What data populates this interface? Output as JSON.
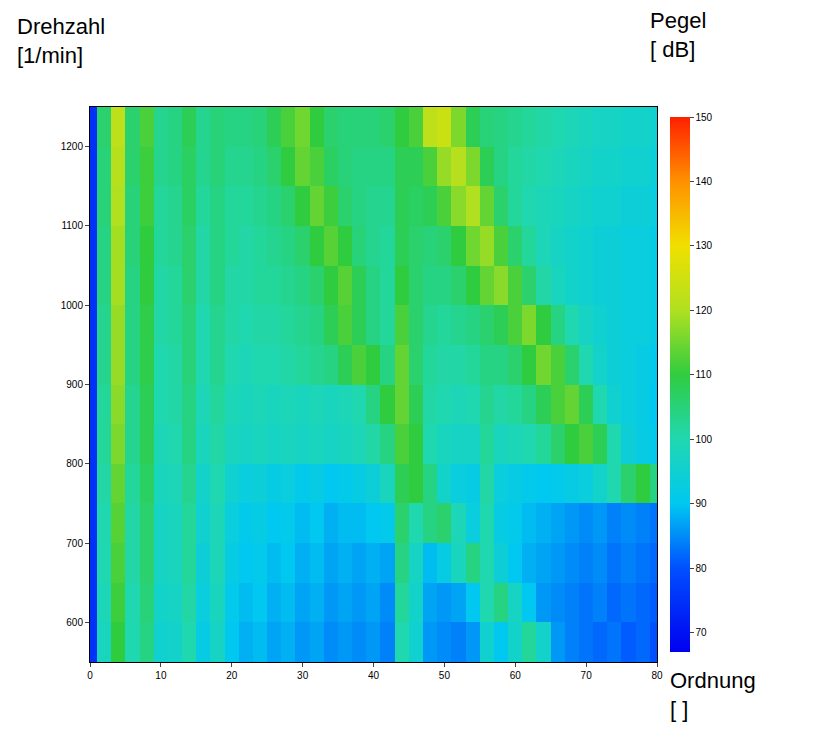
{
  "chart_data": {
    "type": "heatmap",
    "x_label": "Ordnung\n[ ]",
    "y_label": "Drehzahl\n[1/min]",
    "colorbar_label": "Pegel\n[ dB]",
    "x": [
      0,
      2,
      4,
      6,
      8,
      10,
      12,
      14,
      16,
      18,
      20,
      22,
      24,
      26,
      28,
      30,
      32,
      34,
      36,
      38,
      40,
      42,
      44,
      46,
      48,
      50,
      52,
      54,
      56,
      58,
      60,
      62,
      64,
      66,
      68,
      70,
      72,
      74,
      76,
      78,
      80
    ],
    "y": [
      575,
      625,
      675,
      725,
      775,
      825,
      875,
      925,
      975,
      1025,
      1075,
      1125,
      1175,
      1225
    ],
    "z": [
      [
        75,
        98,
        110,
        100,
        104,
        95,
        96,
        100,
        92,
        97,
        90,
        88,
        89,
        87,
        88,
        86,
        87,
        85,
        86,
        85,
        86,
        84,
        100,
        95,
        86,
        85,
        84,
        86,
        95,
        90,
        96,
        102,
        96,
        86,
        84,
        83,
        82,
        83,
        81,
        82,
        80
      ],
      [
        75,
        99,
        111,
        100,
        105,
        96,
        97,
        101,
        93,
        98,
        91,
        89,
        90,
        88,
        89,
        87,
        88,
        86,
        87,
        86,
        87,
        85,
        102,
        96,
        87,
        86,
        87,
        90,
        100,
        104,
        97,
        90,
        86,
        85,
        84,
        83,
        84,
        82,
        83,
        82,
        81
      ],
      [
        75,
        100,
        112,
        101,
        106,
        97,
        98,
        102,
        94,
        99,
        92,
        90,
        91,
        89,
        90,
        88,
        89,
        87,
        88,
        87,
        88,
        87,
        104,
        97,
        89,
        92,
        98,
        104,
        100,
        94,
        90,
        88,
        87,
        86,
        85,
        84,
        85,
        83,
        84,
        83,
        82
      ],
      [
        75,
        100,
        113,
        101,
        106,
        97,
        98,
        102,
        95,
        99,
        93,
        91,
        92,
        90,
        91,
        89,
        90,
        88,
        89,
        89,
        90,
        91,
        106,
        100,
        104,
        106,
        99,
        93,
        100,
        92,
        91,
        89,
        88,
        87,
        86,
        85,
        86,
        84,
        85,
        84,
        83
      ],
      [
        75,
        101,
        114,
        102,
        107,
        98,
        99,
        103,
        96,
        100,
        95,
        93,
        94,
        92,
        93,
        91,
        92,
        90,
        91,
        92,
        94,
        98,
        108,
        110,
        104,
        96,
        93,
        92,
        101,
        93,
        92,
        91,
        90,
        91,
        92,
        93,
        96,
        100,
        106,
        110,
        104
      ],
      [
        75,
        102,
        116,
        103,
        108,
        99,
        100,
        104,
        98,
        101,
        98,
        97,
        98,
        97,
        98,
        97,
        98,
        97,
        98,
        99,
        101,
        104,
        112,
        110,
        100,
        98,
        97,
        97,
        102,
        98,
        99,
        100,
        102,
        106,
        110,
        112,
        108,
        100,
        94,
        92,
        91
      ],
      [
        75,
        102,
        117,
        103,
        108,
        100,
        101,
        104,
        99,
        102,
        99,
        98,
        99,
        98,
        99,
        98,
        99,
        98,
        99,
        100,
        104,
        110,
        114,
        108,
        101,
        100,
        99,
        100,
        103,
        101,
        102,
        104,
        108,
        112,
        114,
        108,
        100,
        95,
        93,
        92,
        90
      ],
      [
        75,
        103,
        118,
        104,
        109,
        100,
        101,
        105,
        100,
        103,
        100,
        99,
        100,
        100,
        101,
        102,
        103,
        104,
        108,
        112,
        110,
        104,
        114,
        106,
        102,
        101,
        101,
        102,
        104,
        104,
        106,
        110,
        115,
        112,
        106,
        100,
        96,
        94,
        93,
        92,
        91
      ],
      [
        75,
        103,
        118,
        104,
        109,
        101,
        102,
        105,
        100,
        103,
        101,
        100,
        101,
        101,
        102,
        103,
        104,
        108,
        112,
        108,
        104,
        102,
        112,
        106,
        103,
        102,
        103,
        104,
        106,
        108,
        112,
        116,
        110,
        104,
        100,
        97,
        95,
        94,
        93,
        93,
        92
      ],
      [
        75,
        104,
        119,
        104,
        110,
        101,
        102,
        106,
        101,
        104,
        101,
        101,
        102,
        102,
        103,
        104,
        106,
        110,
        113,
        108,
        104,
        102,
        110,
        106,
        104,
        104,
        106,
        110,
        114,
        117,
        112,
        106,
        101,
        98,
        96,
        95,
        94,
        94,
        93,
        93,
        92
      ],
      [
        75,
        104,
        119,
        105,
        110,
        102,
        103,
        106,
        101,
        104,
        102,
        101,
        102,
        103,
        104,
        106,
        110,
        113,
        110,
        105,
        103,
        102,
        108,
        106,
        105,
        106,
        110,
        115,
        118,
        112,
        106,
        102,
        99,
        97,
        96,
        95,
        94,
        94,
        93,
        93,
        92
      ],
      [
        75,
        105,
        120,
        105,
        111,
        102,
        103,
        107,
        102,
        104,
        102,
        102,
        103,
        104,
        106,
        110,
        114,
        111,
        106,
        104,
        103,
        103,
        108,
        107,
        108,
        112,
        117,
        120,
        114,
        106,
        102,
        100,
        99,
        98,
        97,
        96,
        95,
        95,
        94,
        94,
        93
      ],
      [
        75,
        105,
        121,
        106,
        111,
        103,
        104,
        107,
        103,
        105,
        103,
        103,
        104,
        106,
        110,
        114,
        112,
        107,
        105,
        104,
        104,
        104,
        108,
        108,
        112,
        118,
        121,
        116,
        108,
        104,
        102,
        101,
        100,
        99,
        98,
        97,
        96,
        96,
        95,
        95,
        94
      ],
      [
        75,
        106,
        122,
        106,
        112,
        103,
        104,
        108,
        103,
        105,
        104,
        104,
        105,
        108,
        112,
        115,
        110,
        106,
        105,
        105,
        105,
        106,
        110,
        112,
        122,
        124,
        116,
        108,
        105,
        104,
        103,
        102,
        101,
        100,
        99,
        98,
        97,
        97,
        96,
        96,
        95
      ]
    ],
    "xlim": [
      0,
      80
    ],
    "xticks": [
      0,
      10,
      20,
      30,
      40,
      50,
      60,
      70,
      80
    ],
    "ylim": [
      550,
      1250
    ],
    "yticks": [
      600,
      700,
      800,
      900,
      1000,
      1100,
      1200
    ],
    "colorbar_range": [
      67,
      150
    ],
    "colorbar_ticks": [
      70,
      80,
      90,
      100,
      110,
      120,
      130,
      140,
      150
    ]
  }
}
